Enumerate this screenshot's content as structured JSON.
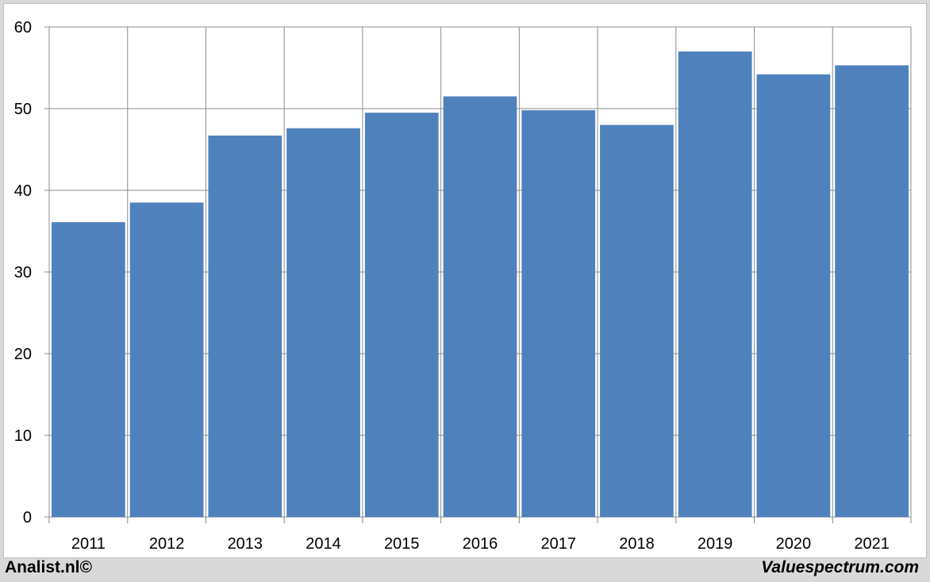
{
  "chart_data": {
    "type": "bar",
    "categories": [
      "2011",
      "2012",
      "2013",
      "2014",
      "2015",
      "2016",
      "2017",
      "2018",
      "2019",
      "2020",
      "2021"
    ],
    "values": [
      36.1,
      38.5,
      46.7,
      47.6,
      49.5,
      51.5,
      49.8,
      48.0,
      57.0,
      54.2,
      55.3
    ],
    "yticks": [
      "0",
      "10",
      "20",
      "30",
      "40",
      "50",
      "60"
    ],
    "ylim": [
      0,
      60
    ],
    "grid": true,
    "bar_color": "#4f81bd",
    "grid_color": "#8c8c8c",
    "title": "",
    "xlabel": "",
    "ylabel": ""
  },
  "footer": {
    "left": "Analist.nl©",
    "right": "Valuespectrum.com"
  }
}
